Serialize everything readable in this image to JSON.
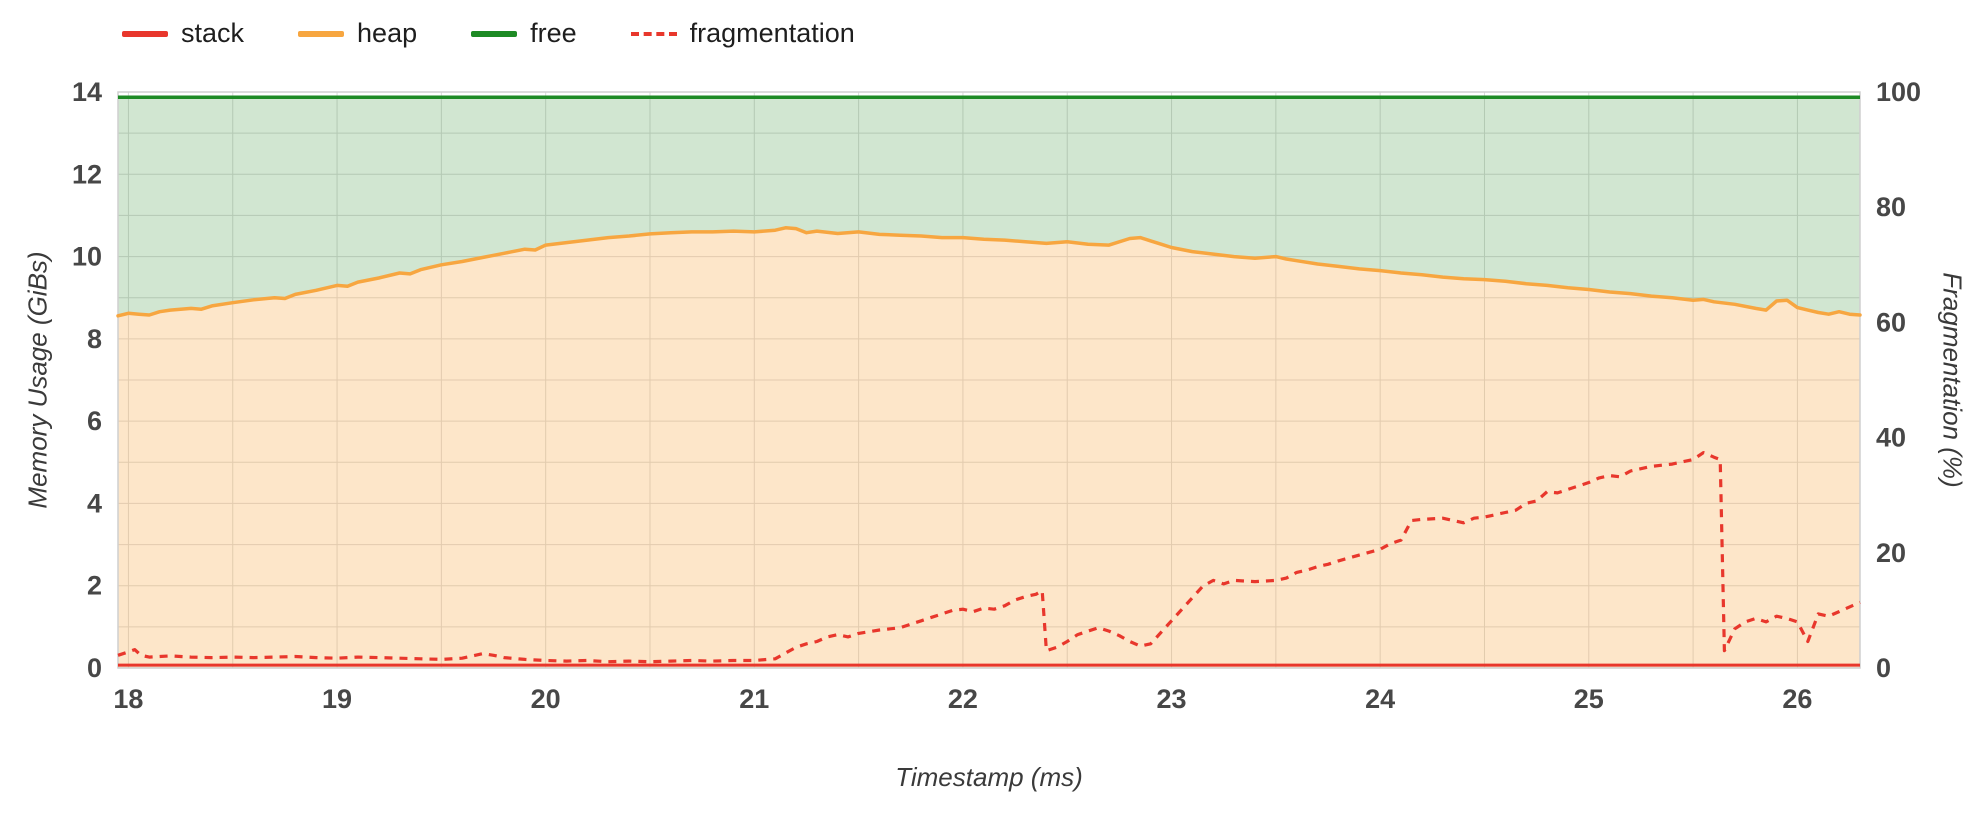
{
  "legend": {
    "position": "top-left",
    "items": [
      {
        "id": "stack",
        "label": "stack",
        "color": "#e8372c",
        "dashed": false
      },
      {
        "id": "heap",
        "label": "heap",
        "color": "#f7a640",
        "dashed": false
      },
      {
        "id": "free",
        "label": "free",
        "color": "#1d8a24",
        "dashed": false
      },
      {
        "id": "fragmentation",
        "label": "fragmentation",
        "color": "#e8372c",
        "dashed": true
      }
    ]
  },
  "chart_data": {
    "type": "area",
    "title": "",
    "xlabel": "Timestamp (ms)",
    "ylabel_left": "Memory Usage (GiBs)",
    "ylabel_right": "Fragmentation (%)",
    "x_range": [
      17.95,
      26.3
    ],
    "y_left_range": [
      0,
      14
    ],
    "y_right_range": [
      0,
      100
    ],
    "x_ticks": [
      18,
      19,
      20,
      21,
      22,
      23,
      24,
      25,
      26
    ],
    "y_left_ticks": [
      0,
      2,
      4,
      6,
      8,
      10,
      12,
      14
    ],
    "y_right_ticks": [
      0,
      20,
      40,
      60,
      80,
      100
    ],
    "grid": {
      "on": true,
      "x_minor_step": 0.5,
      "y_minor_step": 1,
      "color": "#dadada",
      "border_color": "#cfcfcf"
    },
    "total_memory_gib": 13.87,
    "colors": {
      "stack_line": "#e8372c",
      "heap_line": "#f7a640",
      "heap_fill": "rgba(249,166,61,0.28)",
      "free_line": "#1d8a24",
      "free_fill": "rgba(46,139,46,0.22)",
      "fragmentation_line": "#e8372c"
    },
    "series": [
      {
        "name": "stack",
        "axis": "left",
        "values": [
          [
            17.95,
            0.07
          ],
          [
            26.3,
            0.07
          ]
        ]
      },
      {
        "name": "heap",
        "axis": "left",
        "values": [
          [
            17.95,
            8.56
          ],
          [
            18.0,
            8.62
          ],
          [
            18.05,
            8.6
          ],
          [
            18.1,
            8.58
          ],
          [
            18.15,
            8.66
          ],
          [
            18.2,
            8.7
          ],
          [
            18.3,
            8.74
          ],
          [
            18.35,
            8.72
          ],
          [
            18.4,
            8.8
          ],
          [
            18.5,
            8.88
          ],
          [
            18.6,
            8.95
          ],
          [
            18.7,
            9.0
          ],
          [
            18.75,
            8.98
          ],
          [
            18.8,
            9.08
          ],
          [
            18.9,
            9.18
          ],
          [
            19.0,
            9.3
          ],
          [
            19.05,
            9.28
          ],
          [
            19.1,
            9.38
          ],
          [
            19.2,
            9.48
          ],
          [
            19.3,
            9.6
          ],
          [
            19.35,
            9.58
          ],
          [
            19.4,
            9.68
          ],
          [
            19.5,
            9.8
          ],
          [
            19.6,
            9.88
          ],
          [
            19.7,
            9.98
          ],
          [
            19.8,
            10.08
          ],
          [
            19.9,
            10.18
          ],
          [
            19.95,
            10.16
          ],
          [
            20.0,
            10.28
          ],
          [
            20.1,
            10.34
          ],
          [
            20.2,
            10.4
          ],
          [
            20.3,
            10.46
          ],
          [
            20.4,
            10.5
          ],
          [
            20.5,
            10.55
          ],
          [
            20.6,
            10.58
          ],
          [
            20.7,
            10.6
          ],
          [
            20.8,
            10.6
          ],
          [
            20.9,
            10.62
          ],
          [
            21.0,
            10.6
          ],
          [
            21.1,
            10.64
          ],
          [
            21.15,
            10.7
          ],
          [
            21.2,
            10.68
          ],
          [
            21.25,
            10.58
          ],
          [
            21.3,
            10.62
          ],
          [
            21.4,
            10.56
          ],
          [
            21.5,
            10.6
          ],
          [
            21.6,
            10.54
          ],
          [
            21.7,
            10.52
          ],
          [
            21.8,
            10.5
          ],
          [
            21.9,
            10.46
          ],
          [
            22.0,
            10.46
          ],
          [
            22.1,
            10.42
          ],
          [
            22.2,
            10.4
          ],
          [
            22.3,
            10.36
          ],
          [
            22.4,
            10.32
          ],
          [
            22.5,
            10.36
          ],
          [
            22.6,
            10.3
          ],
          [
            22.7,
            10.28
          ],
          [
            22.8,
            10.44
          ],
          [
            22.85,
            10.46
          ],
          [
            22.9,
            10.38
          ],
          [
            22.95,
            10.3
          ],
          [
            23.0,
            10.22
          ],
          [
            23.1,
            10.12
          ],
          [
            23.2,
            10.06
          ],
          [
            23.3,
            10.0
          ],
          [
            23.4,
            9.96
          ],
          [
            23.5,
            10.0
          ],
          [
            23.55,
            9.94
          ],
          [
            23.6,
            9.9
          ],
          [
            23.7,
            9.82
          ],
          [
            23.8,
            9.76
          ],
          [
            23.9,
            9.7
          ],
          [
            24.0,
            9.66
          ],
          [
            24.1,
            9.6
          ],
          [
            24.2,
            9.56
          ],
          [
            24.3,
            9.5
          ],
          [
            24.4,
            9.46
          ],
          [
            24.5,
            9.44
          ],
          [
            24.6,
            9.4
          ],
          [
            24.7,
            9.34
          ],
          [
            24.8,
            9.3
          ],
          [
            24.9,
            9.24
          ],
          [
            25.0,
            9.2
          ],
          [
            25.1,
            9.14
          ],
          [
            25.2,
            9.1
          ],
          [
            25.3,
            9.04
          ],
          [
            25.4,
            9.0
          ],
          [
            25.5,
            8.94
          ],
          [
            25.55,
            8.96
          ],
          [
            25.6,
            8.9
          ],
          [
            25.7,
            8.84
          ],
          [
            25.8,
            8.74
          ],
          [
            25.85,
            8.7
          ],
          [
            25.9,
            8.92
          ],
          [
            25.95,
            8.94
          ],
          [
            26.0,
            8.76
          ],
          [
            26.05,
            8.7
          ],
          [
            26.1,
            8.64
          ],
          [
            26.15,
            8.6
          ],
          [
            26.2,
            8.66
          ],
          [
            26.25,
            8.6
          ],
          [
            26.3,
            8.58
          ]
        ]
      },
      {
        "name": "free",
        "axis": "left",
        "note": "area between heap curve and total memory line at 13.87 GiB"
      },
      {
        "name": "fragmentation",
        "axis": "right",
        "values": [
          [
            17.95,
            2.2
          ],
          [
            18.0,
            2.8
          ],
          [
            18.03,
            3.2
          ],
          [
            18.06,
            2.2
          ],
          [
            18.1,
            1.9
          ],
          [
            18.2,
            2.1
          ],
          [
            18.3,
            1.9
          ],
          [
            18.4,
            1.8
          ],
          [
            18.5,
            1.9
          ],
          [
            18.6,
            1.8
          ],
          [
            18.7,
            1.9
          ],
          [
            18.8,
            2.0
          ],
          [
            18.9,
            1.8
          ],
          [
            19.0,
            1.7
          ],
          [
            19.1,
            1.9
          ],
          [
            19.2,
            1.8
          ],
          [
            19.3,
            1.7
          ],
          [
            19.4,
            1.6
          ],
          [
            19.5,
            1.5
          ],
          [
            19.6,
            1.7
          ],
          [
            19.65,
            2.1
          ],
          [
            19.7,
            2.5
          ],
          [
            19.75,
            2.2
          ],
          [
            19.8,
            1.8
          ],
          [
            19.9,
            1.5
          ],
          [
            20.0,
            1.3
          ],
          [
            20.1,
            1.2
          ],
          [
            20.2,
            1.3
          ],
          [
            20.3,
            1.1
          ],
          [
            20.4,
            1.2
          ],
          [
            20.5,
            1.1
          ],
          [
            20.6,
            1.2
          ],
          [
            20.7,
            1.3
          ],
          [
            20.8,
            1.2
          ],
          [
            20.9,
            1.3
          ],
          [
            21.0,
            1.3
          ],
          [
            21.1,
            1.6
          ],
          [
            21.15,
            2.6
          ],
          [
            21.2,
            3.6
          ],
          [
            21.25,
            4.2
          ],
          [
            21.3,
            4.6
          ],
          [
            21.35,
            5.4
          ],
          [
            21.4,
            5.8
          ],
          [
            21.45,
            5.4
          ],
          [
            21.5,
            6.0
          ],
          [
            21.6,
            6.6
          ],
          [
            21.7,
            7.0
          ],
          [
            21.75,
            7.6
          ],
          [
            21.8,
            8.2
          ],
          [
            21.85,
            8.8
          ],
          [
            21.9,
            9.4
          ],
          [
            21.95,
            10.0
          ],
          [
            22.0,
            10.2
          ],
          [
            22.05,
            9.8
          ],
          [
            22.1,
            10.4
          ],
          [
            22.15,
            10.2
          ],
          [
            22.2,
            10.8
          ],
          [
            22.25,
            11.8
          ],
          [
            22.3,
            12.4
          ],
          [
            22.35,
            12.8
          ],
          [
            22.38,
            13.4
          ],
          [
            22.4,
            3.0
          ],
          [
            22.45,
            3.6
          ],
          [
            22.5,
            4.6
          ],
          [
            22.55,
            5.8
          ],
          [
            22.6,
            6.4
          ],
          [
            22.65,
            7.0
          ],
          [
            22.7,
            6.4
          ],
          [
            22.75,
            5.6
          ],
          [
            22.8,
            4.6
          ],
          [
            22.85,
            3.8
          ],
          [
            22.9,
            4.2
          ],
          [
            22.95,
            6.2
          ],
          [
            23.0,
            8.2
          ],
          [
            23.05,
            10.2
          ],
          [
            23.1,
            12.2
          ],
          [
            23.15,
            14.2
          ],
          [
            23.2,
            15.2
          ],
          [
            23.25,
            14.6
          ],
          [
            23.3,
            15.2
          ],
          [
            23.4,
            15.0
          ],
          [
            23.5,
            15.2
          ],
          [
            23.55,
            15.6
          ],
          [
            23.6,
            16.6
          ],
          [
            23.65,
            17.0
          ],
          [
            23.7,
            17.6
          ],
          [
            23.75,
            18.0
          ],
          [
            23.8,
            18.6
          ],
          [
            23.9,
            19.6
          ],
          [
            24.0,
            20.6
          ],
          [
            24.05,
            21.6
          ],
          [
            24.1,
            22.2
          ],
          [
            24.15,
            25.6
          ],
          [
            24.2,
            25.8
          ],
          [
            24.3,
            26.0
          ],
          [
            24.35,
            25.6
          ],
          [
            24.4,
            25.2
          ],
          [
            24.45,
            26.0
          ],
          [
            24.5,
            26.2
          ],
          [
            24.6,
            27.0
          ],
          [
            24.65,
            27.4
          ],
          [
            24.7,
            28.6
          ],
          [
            24.75,
            29.0
          ],
          [
            24.8,
            30.6
          ],
          [
            24.85,
            30.4
          ],
          [
            24.9,
            31.0
          ],
          [
            24.95,
            31.6
          ],
          [
            25.0,
            32.2
          ],
          [
            25.05,
            33.0
          ],
          [
            25.1,
            33.4
          ],
          [
            25.15,
            33.2
          ],
          [
            25.2,
            34.2
          ],
          [
            25.25,
            34.6
          ],
          [
            25.3,
            35.0
          ],
          [
            25.35,
            35.2
          ],
          [
            25.4,
            35.4
          ],
          [
            25.45,
            35.8
          ],
          [
            25.5,
            36.2
          ],
          [
            25.55,
            37.4
          ],
          [
            25.6,
            36.6
          ],
          [
            25.63,
            36.2
          ],
          [
            25.65,
            3.0
          ],
          [
            25.7,
            6.8
          ],
          [
            25.75,
            8.0
          ],
          [
            25.8,
            8.6
          ],
          [
            25.85,
            8.0
          ],
          [
            25.9,
            9.0
          ],
          [
            25.95,
            8.6
          ],
          [
            26.0,
            8.0
          ],
          [
            26.05,
            4.6
          ],
          [
            26.1,
            9.4
          ],
          [
            26.15,
            9.0
          ],
          [
            26.2,
            9.8
          ],
          [
            26.25,
            10.6
          ],
          [
            26.3,
            11.4
          ]
        ]
      }
    ]
  }
}
